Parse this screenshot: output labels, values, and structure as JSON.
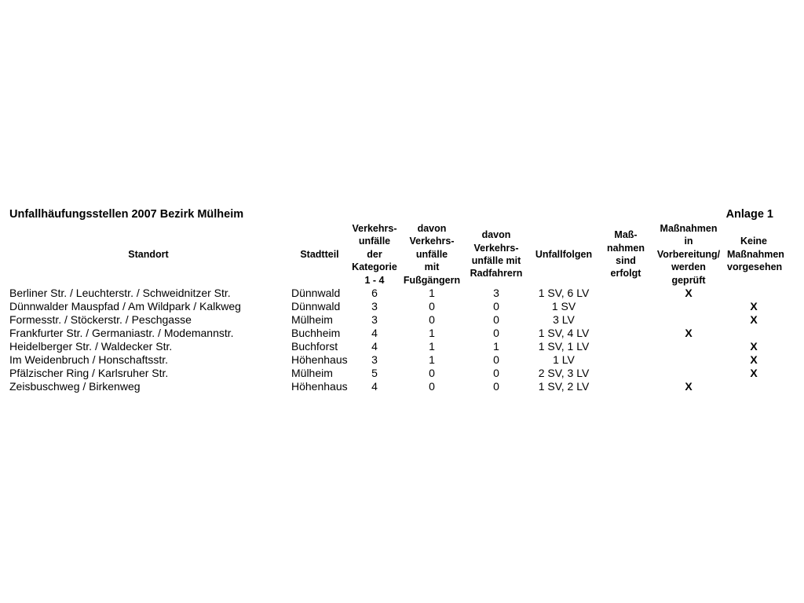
{
  "title": "Unfallhäufungsstellen 2007 Bezirk Mülheim",
  "annex": "Anlage 1",
  "columns": [
    "Standort",
    "Stadtteil",
    "Verkehrs- unfälle der Kategorie 1 - 4",
    "davon Verkehrs- unfälle mit Fußgängern",
    "davon Verkehrs- unfälle mit Radfahrern",
    "Unfallfolgen",
    "Maß- nahmen sind erfolgt",
    "Maßnahmen in Vorbereitung/ werden geprüft",
    "Keine Maßnahmen vorgesehen"
  ],
  "column_lines": [
    [
      "Standort"
    ],
    [
      "Stadtteil"
    ],
    [
      "Verkehrs-",
      "unfälle",
      "der",
      "Kategorie",
      "1 - 4"
    ],
    [
      "davon",
      "Verkehrs-",
      "unfälle",
      "mit",
      "Fußgängern"
    ],
    [
      "davon",
      "Verkehrs-",
      "unfälle mit",
      "Radfahrern"
    ],
    [
      "Unfallfolgen"
    ],
    [
      "Maß-",
      "nahmen",
      "sind erfolgt"
    ],
    [
      "Maßnahmen",
      "in",
      "Vorbereitung/",
      "werden",
      "geprüft"
    ],
    [
      "Keine",
      "Maßnahmen",
      "vorgesehen"
    ]
  ],
  "rows": [
    [
      "Berliner Str. / Leuchterstr. / Schweidnitzer Str.",
      "Dünnwald",
      "6",
      "1",
      "3",
      "1 SV, 6 LV",
      "",
      "X",
      ""
    ],
    [
      "Dünnwalder Mauspfad / Am Wildpark / Kalkweg",
      "Dünnwald",
      "3",
      "0",
      "0",
      "1 SV",
      "",
      "",
      "X"
    ],
    [
      "Formesstr. / Stöckerstr. / Peschgasse",
      "Mülheim",
      "3",
      "0",
      "0",
      "3 LV",
      "",
      "",
      "X"
    ],
    [
      "Frankfurter Str. / Germaniastr. / Modemannstr.",
      "Buchheim",
      "4",
      "1",
      "0",
      "1 SV, 4 LV",
      "",
      "X",
      ""
    ],
    [
      "Heidelberger Str. / Waldecker Str.",
      "Buchforst",
      "4",
      "1",
      "1",
      "1 SV, 1 LV",
      "",
      "",
      "X"
    ],
    [
      "Im Weidenbruch / Honschaftsstr.",
      "Höhenhaus",
      "3",
      "1",
      "0",
      "1 LV",
      "",
      "",
      "X"
    ],
    [
      "Pfälzischer Ring / Karlsruher Str.",
      "Mülheim",
      "5",
      "0",
      "0",
      "2 SV, 3 LV",
      "",
      "",
      "X"
    ],
    [
      "Zeisbuschweg / Birkenweg",
      "Höhenhaus",
      "4",
      "0",
      "0",
      "1 SV, 2 LV",
      "",
      "X",
      ""
    ]
  ]
}
